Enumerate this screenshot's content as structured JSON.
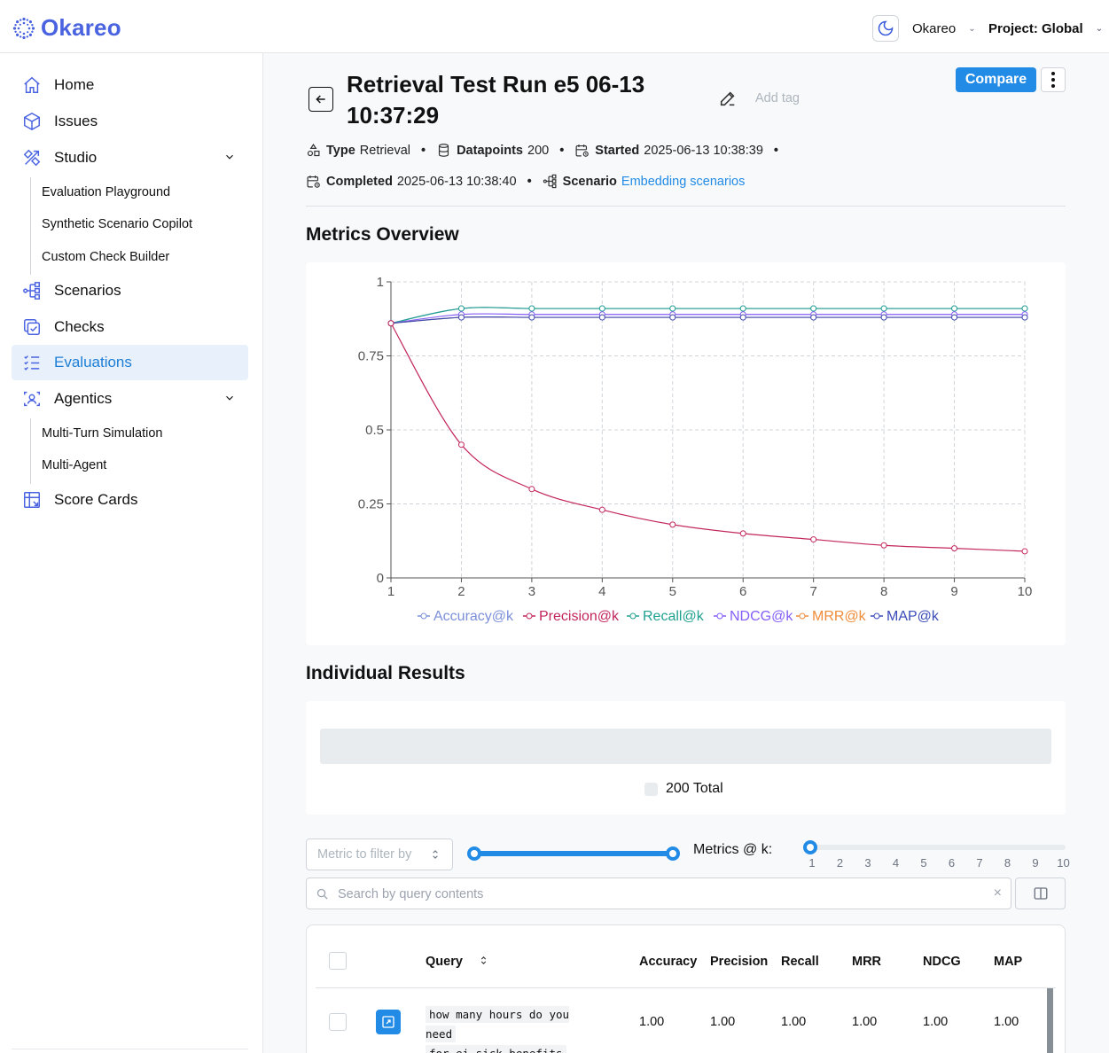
{
  "app": {
    "brand": "Okareo"
  },
  "header": {
    "org_name": "Okareo",
    "project_label": "Project: Global"
  },
  "sidebar": {
    "items": [
      {
        "label": "Home"
      },
      {
        "label": "Issues"
      },
      {
        "label": "Studio"
      },
      {
        "label": "Scenarios"
      },
      {
        "label": "Checks"
      },
      {
        "label": "Evaluations"
      },
      {
        "label": "Agentics"
      },
      {
        "label": "Score Cards"
      }
    ],
    "studio_sub": [
      "Evaluation Playground",
      "Synthetic Scenario Copilot",
      "Custom Check Builder"
    ],
    "agentics_sub": [
      "Multi-Turn Simulation",
      "Multi-Agent"
    ]
  },
  "run": {
    "title": "Retrieval Test Run e5 06-13 10:37:29",
    "add_tag": "Add tag",
    "compare_label": "Compare",
    "type_label": "Type",
    "type_value": "Retrieval",
    "datapoints_label": "Datapoints",
    "datapoints_value": "200",
    "started_label": "Started",
    "started_value": "2025-06-13 10:38:39",
    "completed_label": "Completed",
    "completed_value": "2025-06-13 10:38:40",
    "scenario_label": "Scenario",
    "scenario_value": "Embedding scenarios"
  },
  "sections": {
    "metrics_overview": "Metrics Overview",
    "individual_results": "Individual Results"
  },
  "chart_data": {
    "type": "line",
    "title": "Metrics Overview",
    "x": [
      1,
      2,
      3,
      4,
      5,
      6,
      7,
      8,
      9,
      10
    ],
    "ylim": [
      0,
      1
    ],
    "yticks": [
      "0",
      "0.25",
      "0.5",
      "0.75",
      "1"
    ],
    "grid": true,
    "legend": "bottom",
    "series": [
      {
        "name": "Accuracy@k",
        "color": "#7b8fd9",
        "values": [
          0.86,
          0.91,
          0.91,
          0.91,
          0.91,
          0.91,
          0.91,
          0.91,
          0.91,
          0.91
        ]
      },
      {
        "name": "Precision@k",
        "color": "#c2255c",
        "values": [
          0.86,
          0.45,
          0.3,
          0.23,
          0.18,
          0.15,
          0.13,
          0.11,
          0.1,
          0.09
        ]
      },
      {
        "name": "Recall@k",
        "color": "#20a08f",
        "values": [
          0.86,
          0.91,
          0.91,
          0.91,
          0.91,
          0.91,
          0.91,
          0.91,
          0.91,
          0.91
        ]
      },
      {
        "name": "NDCG@k",
        "color": "#845ef7",
        "values": [
          0.86,
          0.89,
          0.89,
          0.89,
          0.89,
          0.89,
          0.89,
          0.89,
          0.89,
          0.89
        ]
      },
      {
        "name": "MRR@k",
        "color": "#f08c3a",
        "values": [
          0.86,
          0.88,
          0.88,
          0.88,
          0.88,
          0.88,
          0.88,
          0.88,
          0.88,
          0.88
        ]
      },
      {
        "name": "MAP@k",
        "color": "#3b4cb8",
        "values": [
          0.86,
          0.88,
          0.88,
          0.88,
          0.88,
          0.88,
          0.88,
          0.88,
          0.88,
          0.88
        ]
      }
    ]
  },
  "results": {
    "total_label": "200 Total"
  },
  "filters": {
    "metric_placeholder": "Metric to filter by",
    "k_label": "Metrics @ k:",
    "k_selected": 1,
    "k_values": [
      "1",
      "2",
      "3",
      "4",
      "5",
      "6",
      "7",
      "8",
      "9",
      "10"
    ],
    "search_placeholder": "Search by query contents"
  },
  "table": {
    "headers": [
      "Query",
      "Accuracy",
      "Precision",
      "Recall",
      "MRR",
      "NDCG",
      "MAP"
    ],
    "rows": [
      {
        "query_line1": "how many hours do you need",
        "query_line2": "for ei sick benefits",
        "accuracy": "1.00",
        "precision": "1.00",
        "recall": "1.00",
        "mrr": "1.00",
        "ndcg": "1.00",
        "map": "1.00"
      }
    ]
  }
}
